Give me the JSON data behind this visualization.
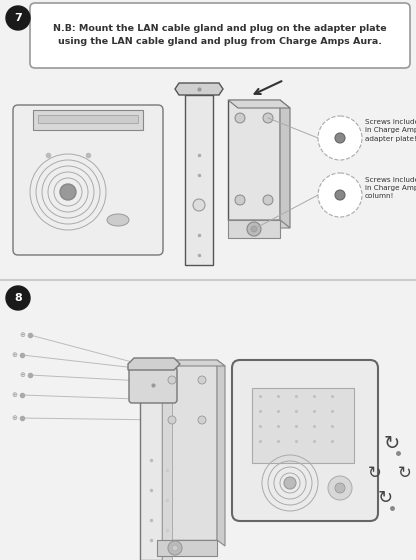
{
  "bg_top": "#f2f2f2",
  "bg_bot": "#ffffff",
  "line_color": "#555555",
  "light_gray": "#e8e8e8",
  "mid_gray": "#cccccc",
  "dark_gray": "#888888",
  "text_color": "#333333",
  "black": "#1a1a1a",
  "white": "#ffffff",
  "note_text": "N.B: Mount the LAN cable gland and plug on the adapter plate\nusing the LAN cable gland and plug from Charge Amps Aura.",
  "ann1": "Screws included\nin Charge Amps\nadapter plate!",
  "ann2": "Screws included\nin Charge Amps\ncolumn!",
  "fig_w": 4.16,
  "fig_h": 5.6,
  "dpi": 100
}
